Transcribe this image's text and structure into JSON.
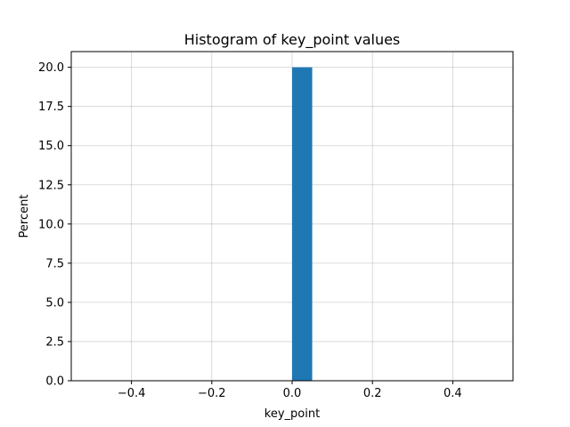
{
  "chart_data": {
    "type": "bar",
    "title": "Histogram of key_point values",
    "xlabel": "key_point",
    "ylabel": "Percent",
    "xlim": [
      -0.55,
      0.55
    ],
    "ylim": [
      0,
      21
    ],
    "grid": true,
    "bar_color": "#1f77b4",
    "bins": [
      {
        "x_start": 0.0,
        "x_end": 0.05,
        "value": 20.0
      }
    ],
    "x_ticks": [
      {
        "value": -0.4,
        "label": "−0.4"
      },
      {
        "value": -0.2,
        "label": "−0.2"
      },
      {
        "value": 0.0,
        "label": "0.0"
      },
      {
        "value": 0.2,
        "label": "0.2"
      },
      {
        "value": 0.4,
        "label": "0.4"
      }
    ],
    "y_ticks": [
      {
        "value": 0.0,
        "label": "0.0"
      },
      {
        "value": 2.5,
        "label": "2.5"
      },
      {
        "value": 5.0,
        "label": "5.0"
      },
      {
        "value": 7.5,
        "label": "7.5"
      },
      {
        "value": 10.0,
        "label": "10.0"
      },
      {
        "value": 12.5,
        "label": "12.5"
      },
      {
        "value": 15.0,
        "label": "15.0"
      },
      {
        "value": 17.5,
        "label": "17.5"
      },
      {
        "value": 20.0,
        "label": "20.0"
      }
    ]
  }
}
